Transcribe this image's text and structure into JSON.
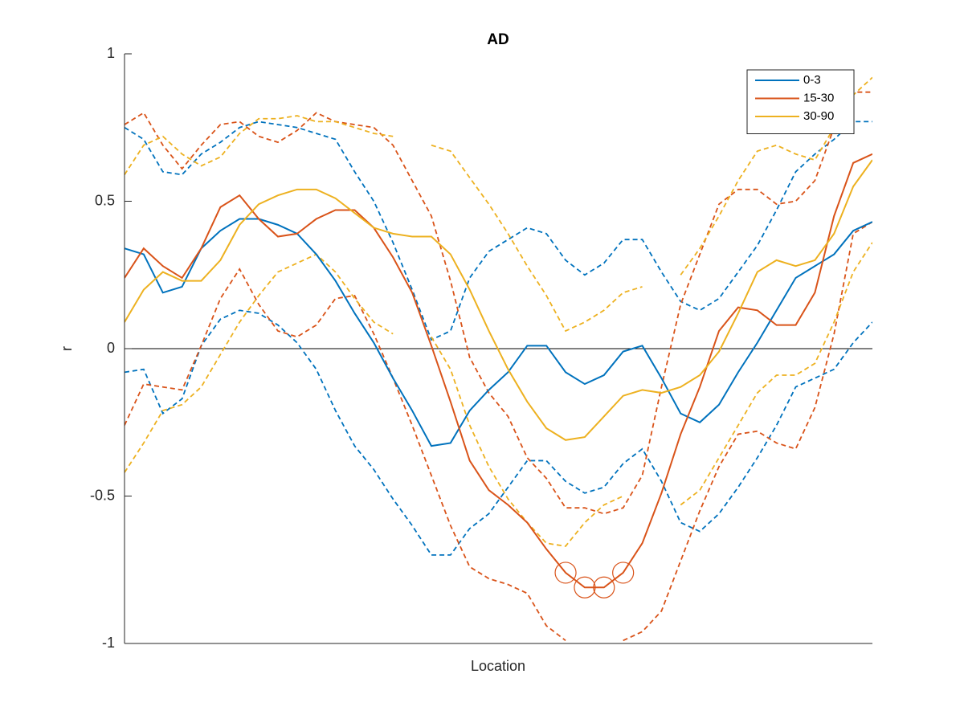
{
  "chart_data": {
    "type": "line",
    "title": "AD",
    "x_label": "Location",
    "y_label": "r",
    "categories": [
      null,
      null,
      null,
      null,
      null,
      null,
      null,
      null,
      null,
      null,
      null,
      null,
      null,
      null,
      null,
      null,
      null,
      null,
      null,
      null,
      null,
      null,
      null,
      null,
      null,
      null,
      null,
      null,
      null,
      null,
      null,
      null,
      null,
      null,
      null,
      null,
      null,
      null,
      null,
      null
    ],
    "ylim": [
      -1,
      1
    ],
    "yticks": [
      -1,
      -0.5,
      0,
      0.5,
      1
    ],
    "grid": false,
    "zero_line": true,
    "legend": "northeast",
    "series": [
      {
        "name": "0-3",
        "color": "#0072bd",
        "values": [
          0.34,
          0.32,
          0.19,
          0.21,
          0.34,
          0.4,
          0.44,
          0.44,
          0.42,
          0.39,
          0.32,
          0.23,
          0.12,
          0.02,
          -0.1,
          -0.21,
          -0.33,
          -0.32,
          -0.21,
          -0.14,
          -0.08,
          0.01,
          0.01,
          -0.08,
          -0.12,
          -0.09,
          -0.01,
          0.01,
          -0.1,
          -0.22,
          -0.25,
          -0.19,
          -0.08,
          0.02,
          0.13,
          0.24,
          0.28,
          0.32,
          0.4,
          0.43
        ],
        "upper": [
          0.75,
          0.71,
          0.6,
          0.59,
          0.66,
          0.7,
          0.75,
          0.77,
          0.76,
          0.75,
          0.73,
          0.71,
          0.6,
          0.5,
          0.36,
          0.2,
          0.03,
          0.06,
          0.24,
          0.33,
          0.37,
          0.41,
          0.39,
          0.3,
          0.25,
          0.29,
          0.37,
          0.37,
          0.26,
          0.16,
          0.13,
          0.17,
          0.26,
          0.35,
          0.47,
          0.6,
          0.66,
          0.71,
          0.77,
          0.77
        ],
        "lower": [
          -0.08,
          -0.07,
          -0.22,
          -0.17,
          0.01,
          0.1,
          0.13,
          0.12,
          0.08,
          0.02,
          -0.07,
          -0.21,
          -0.33,
          -0.41,
          -0.51,
          -0.6,
          -0.7,
          -0.7,
          -0.61,
          -0.56,
          -0.47,
          -0.38,
          -0.38,
          -0.45,
          -0.49,
          -0.47,
          -0.39,
          -0.34,
          -0.45,
          -0.59,
          -0.62,
          -0.56,
          -0.47,
          -0.37,
          -0.26,
          -0.13,
          -0.1,
          -0.07,
          0.02,
          0.09
        ]
      },
      {
        "name": "15-30",
        "color": "#d95319",
        "values": [
          0.24,
          0.34,
          0.28,
          0.24,
          0.34,
          0.48,
          0.52,
          0.44,
          0.38,
          0.39,
          0.44,
          0.47,
          0.47,
          0.41,
          0.31,
          0.19,
          0.01,
          -0.18,
          -0.38,
          -0.48,
          -0.53,
          -0.59,
          -0.68,
          -0.76,
          -0.81,
          -0.81,
          -0.76,
          -0.66,
          -0.49,
          -0.29,
          -0.13,
          0.06,
          0.14,
          0.13,
          0.08,
          0.08,
          0.19,
          0.45,
          0.63,
          0.66
        ],
        "upper": [
          0.76,
          0.8,
          0.69,
          0.61,
          0.69,
          0.76,
          0.77,
          0.72,
          0.7,
          0.74,
          0.8,
          0.77,
          0.76,
          0.75,
          0.69,
          0.57,
          0.45,
          0.23,
          -0.03,
          -0.15,
          -0.23,
          -0.37,
          -0.44,
          -0.54,
          -0.54,
          -0.56,
          -0.54,
          -0.43,
          -0.13,
          0.15,
          0.32,
          0.49,
          0.54,
          0.54,
          0.49,
          0.5,
          0.57,
          0.75,
          0.87,
          0.87
        ],
        "lower": [
          -0.26,
          -0.12,
          -0.13,
          -0.14,
          0.01,
          0.17,
          0.27,
          0.15,
          0.06,
          0.04,
          0.08,
          0.17,
          0.18,
          0.05,
          -0.1,
          -0.26,
          -0.43,
          -0.6,
          -0.74,
          -0.78,
          -0.8,
          -0.83,
          -0.94,
          -0.99,
          null,
          null,
          -0.99,
          -0.96,
          -0.89,
          -0.72,
          -0.55,
          -0.4,
          -0.29,
          -0.28,
          -0.32,
          -0.34,
          -0.2,
          0.05,
          0.39,
          0.43
        ],
        "highlight": [
          23,
          24,
          25,
          26
        ]
      },
      {
        "name": "30-90",
        "color": "#edb120",
        "values": [
          0.09,
          0.2,
          0.26,
          0.23,
          0.23,
          0.3,
          0.42,
          0.49,
          0.52,
          0.54,
          0.54,
          0.51,
          0.46,
          0.41,
          0.39,
          0.38,
          0.38,
          0.32,
          0.2,
          0.06,
          -0.07,
          -0.18,
          -0.27,
          -0.31,
          -0.3,
          -0.23,
          -0.16,
          -0.14,
          -0.15,
          -0.13,
          -0.09,
          -0.01,
          0.12,
          0.26,
          0.3,
          0.28,
          0.3,
          0.39,
          0.55,
          0.64
        ],
        "upper": [
          0.59,
          0.69,
          0.72,
          0.66,
          0.62,
          0.65,
          0.73,
          0.78,
          0.78,
          0.79,
          0.77,
          0.77,
          0.75,
          0.73,
          0.72,
          null,
          0.69,
          0.67,
          0.58,
          0.49,
          0.39,
          0.28,
          0.18,
          0.06,
          0.09,
          0.13,
          0.19,
          0.21,
          null,
          0.25,
          0.34,
          0.45,
          0.57,
          0.67,
          0.69,
          0.66,
          0.64,
          0.75,
          0.86,
          0.92
        ],
        "lower": [
          -0.42,
          -0.32,
          -0.21,
          -0.19,
          -0.13,
          -0.02,
          0.09,
          0.18,
          0.26,
          0.29,
          0.32,
          0.26,
          0.17,
          0.09,
          0.05,
          null,
          0.04,
          -0.07,
          -0.26,
          -0.4,
          -0.51,
          -0.59,
          -0.66,
          -0.67,
          -0.59,
          -0.53,
          -0.5,
          null,
          null,
          -0.53,
          -0.48,
          -0.37,
          -0.26,
          -0.15,
          -0.09,
          -0.09,
          -0.05,
          0.09,
          0.26,
          0.36
        ]
      }
    ]
  }
}
